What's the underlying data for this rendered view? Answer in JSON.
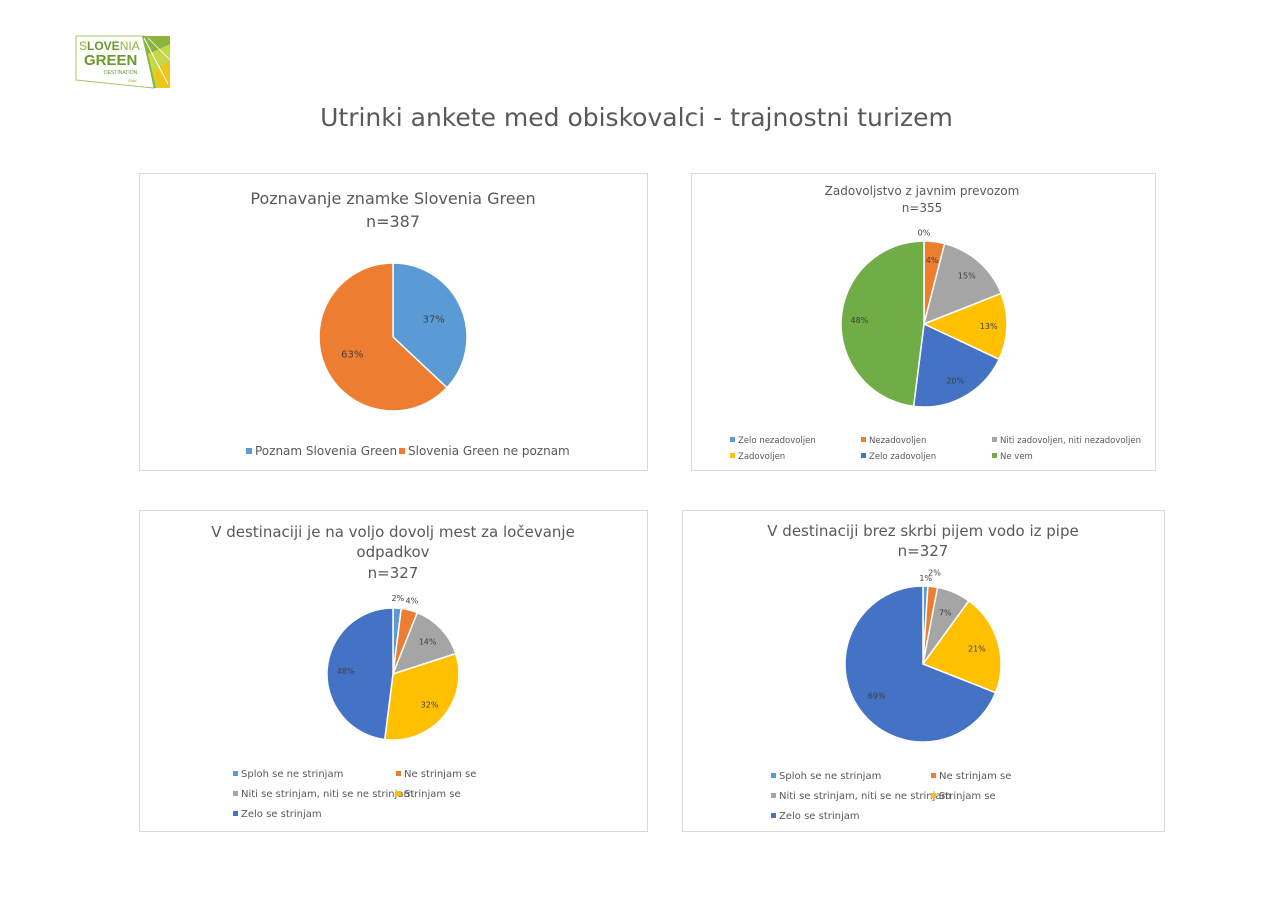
{
  "page": {
    "title": "Utrinki ankete med obiskovalci - trajnostni turizem",
    "logo": {
      "line1a": "S",
      "line1b": "LOVE",
      "line1c": "NIA",
      "line2": "GREEN",
      "line3": "DESTINATION",
      "line4": "Gold"
    }
  },
  "colors": {
    "blue": "#5b9bd5",
    "orange": "#ed7d31",
    "gray": "#a5a5a5",
    "yellow": "#ffc000",
    "darkblue": "#4472c4",
    "green": "#70ad47"
  },
  "chart_data": [
    {
      "type": "pie",
      "title": "Poznavanje znamke Slovenia Green",
      "subtitle": "n=387",
      "categories": [
        "Poznam Slovenia Green",
        "Slovenia Green ne poznam"
      ],
      "values": [
        37,
        63
      ],
      "labels": [
        "37%",
        "63%"
      ],
      "colors": [
        "#5b9bd5",
        "#ed7d31"
      ],
      "legend_position": "bottom"
    },
    {
      "type": "pie",
      "title": "Zadovoljstvo z javnim prevozom",
      "subtitle": "n=355",
      "categories": [
        "Zelo nezadovoljen",
        "Nezadovoljen",
        "Niti zadovoljen, niti nezadovoljen",
        "Zadovoljen",
        "Zelo zadovoljen",
        "Ne vem"
      ],
      "values": [
        0,
        4,
        15,
        13,
        20,
        48
      ],
      "labels": [
        "0%",
        "4%",
        "15%",
        "13%",
        "20%",
        "48%"
      ],
      "colors": [
        "#5b9bd5",
        "#ed7d31",
        "#a5a5a5",
        "#ffc000",
        "#4472c4",
        "#70ad47"
      ],
      "legend_position": "bottom"
    },
    {
      "type": "pie",
      "title": "V destinaciji je na voljo dovolj mest za ločevanje odpadkov",
      "title_lines": [
        "V destinaciji je na voljo dovolj mest za ločevanje",
        "odpadkov"
      ],
      "subtitle": "n=327",
      "categories": [
        "Sploh se ne strinjam",
        "Ne strinjam se",
        "Niti se strinjam, niti se ne strinjam",
        "Strinjam se",
        "Zelo se strinjam"
      ],
      "values": [
        2,
        4,
        14,
        32,
        48
      ],
      "labels": [
        "2%",
        "4%",
        "14%",
        "32%",
        "48%"
      ],
      "colors": [
        "#5b9bd5",
        "#ed7d31",
        "#a5a5a5",
        "#ffc000",
        "#4472c4"
      ],
      "legend_position": "bottom"
    },
    {
      "type": "pie",
      "title": "V destinaciji brez skrbi pijem vodo iz pipe",
      "subtitle": "n=327",
      "categories": [
        "Sploh se ne strinjam",
        "Ne strinjam se",
        "Niti se strinjam, niti se ne strinjam",
        "Strinjam se",
        "Zelo se strinjam"
      ],
      "values": [
        1,
        2,
        7,
        21,
        69
      ],
      "labels": [
        "1%",
        "2%",
        "7%",
        "21%",
        "69%"
      ],
      "colors": [
        "#5b9bd5",
        "#ed7d31",
        "#a5a5a5",
        "#ffc000",
        "#4472c4"
      ],
      "legend_position": "bottom"
    }
  ]
}
